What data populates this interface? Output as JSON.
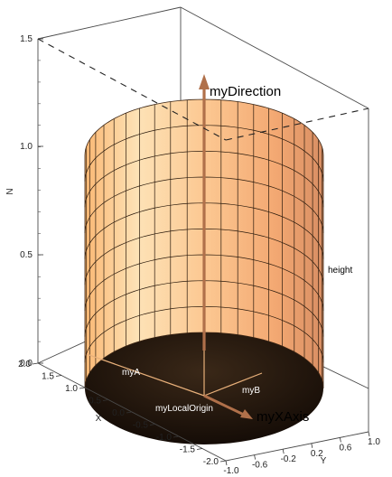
{
  "plot": {
    "axes": {
      "z": {
        "label": "N",
        "ticks": [
          "1.5",
          "1.0",
          "0.5",
          "0.0"
        ]
      },
      "x": {
        "label": "X",
        "ticks": [
          "2.0",
          "1.5",
          "1.0",
          "0.5",
          "0.0",
          "-0.5",
          "-1.0",
          "-1.5",
          "-2.0"
        ]
      },
      "y": {
        "label": "Y",
        "ticks": [
          "-1.0",
          "-0.6",
          "-0.2",
          "0.2",
          "0.6",
          "1.0"
        ]
      }
    },
    "annotations": {
      "direction": "myDirection",
      "x_axis": "myXAxis",
      "height": "height",
      "a": "myA",
      "b": "myB",
      "origin": "myLocalOrigin"
    },
    "colors": {
      "surface_light": "#fde0b2",
      "surface_mid": "#fbb470",
      "surface_dark": "#e39c6b",
      "base_dark": "#1c120a",
      "arrow": "#b0704a",
      "grid": "#2a1a0c"
    }
  }
}
